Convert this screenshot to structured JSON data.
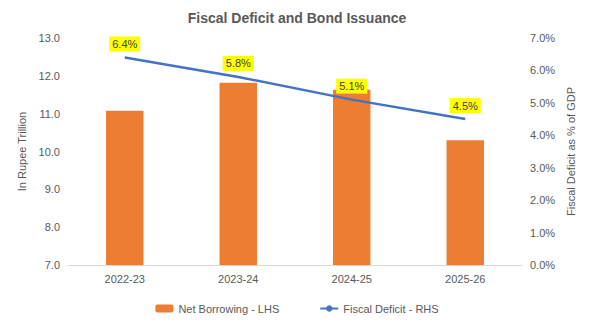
{
  "chart_data": {
    "type": "bar",
    "title": "Fiscal Deficit and Bond Issuance",
    "categories": [
      "2022-23",
      "2023-24",
      "2024-25",
      "2025-26"
    ],
    "series": [
      {
        "name": "Net Borrowing - LHS",
        "type": "bar",
        "color": "#ED7D31",
        "values": [
          11.08,
          11.82,
          11.63,
          10.3
        ]
      },
      {
        "name": "Fiscal Deficit - RHS",
        "type": "line",
        "axis": "y2",
        "color": "#4472C4",
        "marker": "none",
        "data_labels": true,
        "values": [
          6.4,
          5.8,
          5.1,
          4.5
        ],
        "value_labels": [
          "6.4%",
          "5.8%",
          "5.1%",
          "4.5%"
        ]
      }
    ],
    "y_label": "In Rupee Trillion",
    "y2_label": "Fiscal Deficit as % of GDP",
    "ylim": [
      7,
      13
    ],
    "yticks": [
      {
        "value": 7,
        "label": "7.0"
      },
      {
        "value": 8,
        "label": "8.0"
      },
      {
        "value": 9,
        "label": "9.0"
      },
      {
        "value": 10,
        "label": "10.0"
      },
      {
        "value": 11,
        "label": "11.0"
      },
      {
        "value": 12,
        "label": "12.0"
      },
      {
        "value": 13,
        "label": "13.0"
      }
    ],
    "y2lim": [
      0,
      7
    ],
    "y2ticks": [
      {
        "value": 0,
        "label": "0.0%"
      },
      {
        "value": 1,
        "label": "1.0%"
      },
      {
        "value": 2,
        "label": "2.0%"
      },
      {
        "value": 3,
        "label": "3.0%"
      },
      {
        "value": 4,
        "label": "4.0%"
      },
      {
        "value": 5,
        "label": "5.0%"
      },
      {
        "value": 6,
        "label": "6.0%"
      },
      {
        "value": 7,
        "label": "7.0%"
      }
    ],
    "grid": false,
    "legend": "bottom"
  }
}
